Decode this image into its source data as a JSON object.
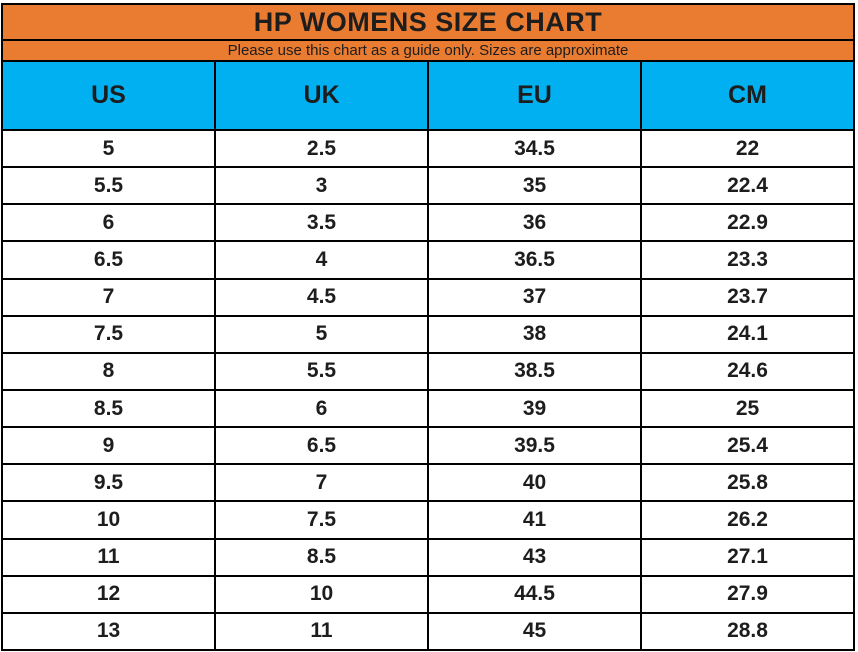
{
  "chart_data": {
    "type": "table",
    "title": "HP WOMENS SIZE CHART",
    "subtitle": "Please use this chart as a guide only. Sizes are approximate",
    "columns": [
      "US",
      "UK",
      "EU",
      "CM"
    ],
    "rows": [
      [
        "5",
        "2.5",
        "34.5",
        "22"
      ],
      [
        "5.5",
        "3",
        "35",
        "22.4"
      ],
      [
        "6",
        "3.5",
        "36",
        "22.9"
      ],
      [
        "6.5",
        "4",
        "36.5",
        "23.3"
      ],
      [
        "7",
        "4.5",
        "37",
        "23.7"
      ],
      [
        "7.5",
        "5",
        "38",
        "24.1"
      ],
      [
        "8",
        "5.5",
        "38.5",
        "24.6"
      ],
      [
        "8.5",
        "6",
        "39",
        "25"
      ],
      [
        "9",
        "6.5",
        "39.5",
        "25.4"
      ],
      [
        "9.5",
        "7",
        "40",
        "25.8"
      ],
      [
        "10",
        "7.5",
        "41",
        "26.2"
      ],
      [
        "11",
        "8.5",
        "43",
        "27.1"
      ],
      [
        "12",
        "10",
        "44.5",
        "27.9"
      ],
      [
        "13",
        "11",
        "45",
        "28.8"
      ]
    ],
    "colors": {
      "title_bg": "#E97C30",
      "subtitle_bg": "#E97C30",
      "column_header_bg": "#00B0F0",
      "row_bg": "#FFFFFF",
      "border": "#000000",
      "text": "#1D1D1D"
    },
    "layout": {
      "legend": "none",
      "grid": "on"
    }
  }
}
